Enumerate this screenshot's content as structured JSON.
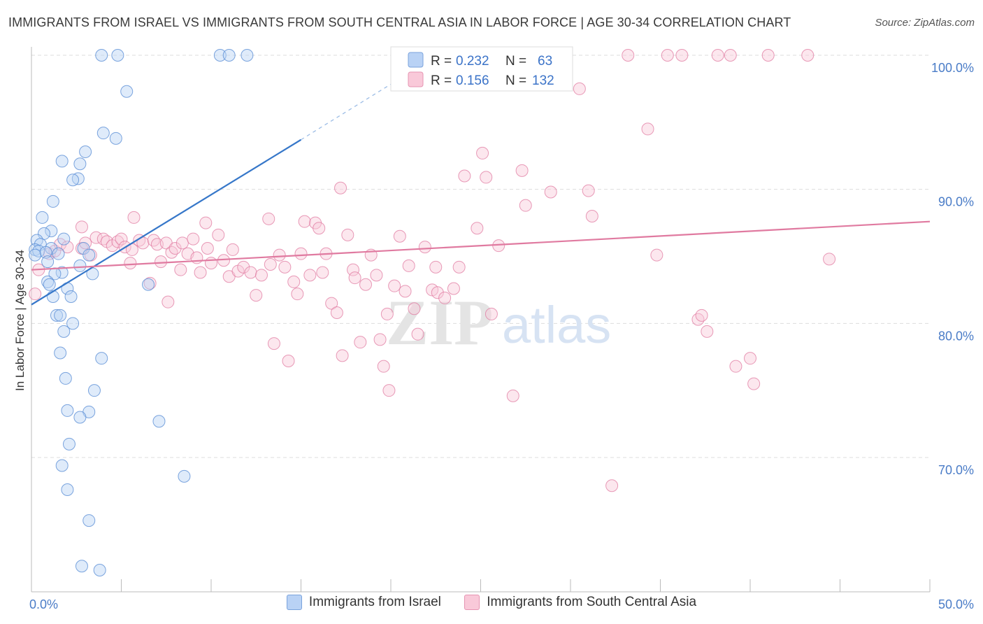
{
  "title": "IMMIGRANTS FROM ISRAEL VS IMMIGRANTS FROM SOUTH CENTRAL ASIA IN LABOR FORCE | AGE 30-34 CORRELATION CHART",
  "source": "Source: ZipAtlas.com",
  "watermark": {
    "zip": "ZIP",
    "atlas": "atlas"
  },
  "colors": {
    "israel": "#5b8fd6",
    "israel_fill": "#b9d2f5",
    "sca": "#e07aa0",
    "sca_fill": "#f9c9d9",
    "tick": "#4a7cc7",
    "grid": "#dddddd"
  },
  "legend": {
    "r_label": "R =",
    "n_label": "N =",
    "israel": {
      "r": "0.232",
      "n": "63"
    },
    "sca": {
      "r": "0.156",
      "n": "132"
    }
  },
  "chart_data": {
    "type": "scatter",
    "title": "IMMIGRANTS FROM ISRAEL VS IMMIGRANTS FROM SOUTH CENTRAL ASIA IN LABOR FORCE | AGE 30-34 CORRELATION CHART",
    "xlabel": "",
    "ylabel": "In Labor Force | Age 30-34",
    "xlim": [
      0,
      50
    ],
    "ylim": [
      60.5,
      101.5
    ],
    "x_ticks": [
      "0.0%",
      "50.0%"
    ],
    "y_ticks": [
      {
        "value": 70,
        "label": "70.0%"
      },
      {
        "value": 80,
        "label": "80.0%"
      },
      {
        "value": 90,
        "label": "90.0%"
      },
      {
        "value": 100,
        "label": "100.0%"
      }
    ],
    "grid": true,
    "legend_position": "top-center",
    "series": [
      {
        "name": "Immigrants from Israel",
        "color": "#5b8fd6",
        "trend": {
          "x": [
            0,
            15
          ],
          "y": [
            81.4,
            93.7
          ],
          "dashed_to": [
            22,
            99.5
          ]
        },
        "points": [
          [
            3.9,
            100
          ],
          [
            4.8,
            100
          ],
          [
            10.5,
            100
          ],
          [
            11,
            100
          ],
          [
            12,
            100
          ],
          [
            5.3,
            97.3
          ],
          [
            4,
            94.2
          ],
          [
            4.7,
            93.8
          ],
          [
            3,
            92.8
          ],
          [
            1.7,
            92.1
          ],
          [
            2.7,
            91.9
          ],
          [
            2.6,
            90.8
          ],
          [
            2.3,
            90.7
          ],
          [
            1.2,
            89.1
          ],
          [
            0.6,
            87.9
          ],
          [
            1.1,
            86.9
          ],
          [
            0.7,
            86.7
          ],
          [
            1.8,
            86.3
          ],
          [
            0.3,
            86.2
          ],
          [
            0.5,
            85.9
          ],
          [
            1.1,
            85.6
          ],
          [
            2.9,
            85.6
          ],
          [
            0.2,
            85.5
          ],
          [
            0.4,
            85.4
          ],
          [
            0.8,
            85.3
          ],
          [
            1.5,
            85.2
          ],
          [
            0.2,
            85.1
          ],
          [
            3.2,
            85.1
          ],
          [
            0.9,
            84.6
          ],
          [
            2.7,
            84.3
          ],
          [
            1.7,
            83.8
          ],
          [
            1.3,
            83.7
          ],
          [
            3.4,
            83.7
          ],
          [
            0.9,
            83.1
          ],
          [
            1,
            82.9
          ],
          [
            6.5,
            82.9
          ],
          [
            2,
            82.6
          ],
          [
            1.2,
            82
          ],
          [
            2.2,
            82
          ],
          [
            1.4,
            80.6
          ],
          [
            1.6,
            80.6
          ],
          [
            2.3,
            80
          ],
          [
            1.8,
            79.4
          ],
          [
            1.6,
            77.8
          ],
          [
            3.9,
            77.4
          ],
          [
            1.9,
            75.9
          ],
          [
            3.5,
            75
          ],
          [
            2,
            73.5
          ],
          [
            3.2,
            73.4
          ],
          [
            2.7,
            73
          ],
          [
            7.1,
            72.7
          ],
          [
            2.1,
            71
          ],
          [
            1.7,
            69.4
          ],
          [
            8.5,
            68.6
          ],
          [
            2,
            67.6
          ],
          [
            3.2,
            65.3
          ],
          [
            2.8,
            61.9
          ],
          [
            3.8,
            61.6
          ]
        ]
      },
      {
        "name": "Immigrants from South Central Asia",
        "color": "#e07aa0",
        "trend": {
          "x": [
            0,
            50
          ],
          "y": [
            84,
            87.6
          ]
        },
        "points": [
          [
            0.2,
            82.2
          ],
          [
            0.4,
            84
          ],
          [
            1,
            85.2
          ],
          [
            1.3,
            85.4
          ],
          [
            1.6,
            85.9
          ],
          [
            2,
            85.7
          ],
          [
            2.8,
            87.2
          ],
          [
            2.8,
            85.6
          ],
          [
            3,
            86
          ],
          [
            3.3,
            85.1
          ],
          [
            3.6,
            86.4
          ],
          [
            4,
            86.3
          ],
          [
            4.2,
            86.1
          ],
          [
            4.5,
            85.8
          ],
          [
            4.8,
            86.1
          ],
          [
            5,
            86.3
          ],
          [
            5.2,
            85.7
          ],
          [
            5.5,
            84.5
          ],
          [
            5.6,
            85.5
          ],
          [
            5.7,
            87.9
          ],
          [
            6,
            86.2
          ],
          [
            6.2,
            86
          ],
          [
            6.6,
            83
          ],
          [
            6.8,
            86.2
          ],
          [
            7,
            85.9
          ],
          [
            7.2,
            84.6
          ],
          [
            7.5,
            86
          ],
          [
            7.6,
            81.6
          ],
          [
            7.8,
            85.3
          ],
          [
            8,
            85.6
          ],
          [
            8.3,
            84
          ],
          [
            8.4,
            86
          ],
          [
            8.7,
            85.2
          ],
          [
            9,
            86.3
          ],
          [
            9.2,
            84.9
          ],
          [
            9.4,
            83.8
          ],
          [
            9.7,
            87.5
          ],
          [
            9.8,
            85.6
          ],
          [
            10,
            84.5
          ],
          [
            10.4,
            86.6
          ],
          [
            10.7,
            84.7
          ],
          [
            11,
            83.5
          ],
          [
            11.2,
            85.5
          ],
          [
            11.5,
            83.9
          ],
          [
            11.8,
            84.2
          ],
          [
            12.2,
            83.8
          ],
          [
            12.5,
            82.1
          ],
          [
            12.8,
            83.6
          ],
          [
            13.2,
            87.8
          ],
          [
            13.3,
            84.4
          ],
          [
            13.5,
            78.5
          ],
          [
            13.8,
            85.1
          ],
          [
            14.1,
            84.2
          ],
          [
            14.3,
            77.2
          ],
          [
            14.6,
            83.1
          ],
          [
            14.8,
            82.2
          ],
          [
            15,
            85.2
          ],
          [
            15.2,
            87.6
          ],
          [
            15.5,
            83.6
          ],
          [
            15.8,
            87.5
          ],
          [
            16,
            87.1
          ],
          [
            16.2,
            83.8
          ],
          [
            16.4,
            85.2
          ],
          [
            16.7,
            81.5
          ],
          [
            17,
            80.8
          ],
          [
            17.2,
            90.1
          ],
          [
            17.3,
            77.6
          ],
          [
            17.6,
            86.6
          ],
          [
            17.9,
            84
          ],
          [
            18,
            83.4
          ],
          [
            18.3,
            78.6
          ],
          [
            18.6,
            82.9
          ],
          [
            18.9,
            85.1
          ],
          [
            19.2,
            83.6
          ],
          [
            19.4,
            78.8
          ],
          [
            19.6,
            76.8
          ],
          [
            19.8,
            80.7
          ],
          [
            19.9,
            75
          ],
          [
            20.2,
            82.8
          ],
          [
            20.5,
            86.5
          ],
          [
            20.8,
            82.4
          ],
          [
            21,
            84.3
          ],
          [
            21.3,
            81.1
          ],
          [
            21.5,
            79.2
          ],
          [
            21.9,
            85.7
          ],
          [
            22.3,
            82.5
          ],
          [
            22.5,
            84.2
          ],
          [
            22.6,
            82.3
          ],
          [
            23,
            81.9
          ],
          [
            23.5,
            82.6
          ],
          [
            23.8,
            84.2
          ],
          [
            24.1,
            91
          ],
          [
            24.8,
            87.1
          ],
          [
            25.1,
            92.7
          ],
          [
            25.3,
            90.9
          ],
          [
            25.6,
            80.7
          ],
          [
            26,
            85.8
          ],
          [
            26.8,
            74.6
          ],
          [
            27.3,
            91.4
          ],
          [
            27.5,
            88.8
          ],
          [
            28.9,
            89.8
          ],
          [
            30.5,
            97.5
          ],
          [
            31,
            89.9
          ],
          [
            31.2,
            88
          ],
          [
            32.3,
            67.9
          ],
          [
            33.2,
            100
          ],
          [
            34.3,
            94.5
          ],
          [
            34.8,
            85.1
          ],
          [
            35.4,
            100
          ],
          [
            36.2,
            100
          ],
          [
            37.1,
            80.3
          ],
          [
            37.3,
            80.6
          ],
          [
            37.6,
            79.4
          ],
          [
            38.2,
            100
          ],
          [
            38.9,
            100
          ],
          [
            39.2,
            76.8
          ],
          [
            40,
            77.4
          ],
          [
            40.2,
            75.5
          ],
          [
            41,
            100
          ],
          [
            43.2,
            100
          ],
          [
            44.4,
            84.8
          ]
        ]
      }
    ]
  },
  "bottom_legend": {
    "israel": "Immigrants from Israel",
    "sca": "Immigrants from South Central Asia"
  }
}
